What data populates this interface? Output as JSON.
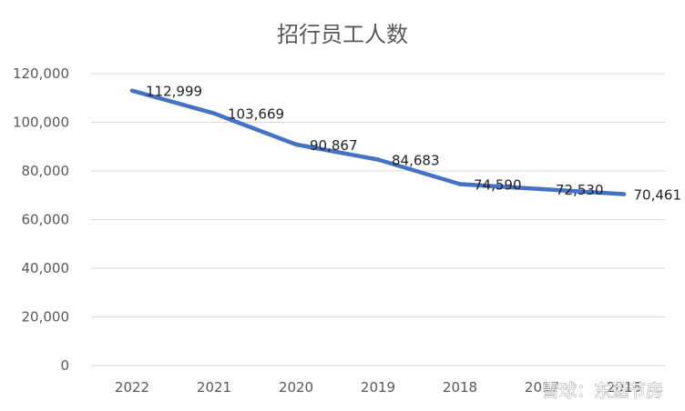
{
  "chart_data": {
    "type": "line",
    "title": "招行员工人数",
    "categories": [
      "2022",
      "2021",
      "2020",
      "2019",
      "2018",
      "2017",
      "2016"
    ],
    "series": [
      {
        "values": [
          112999,
          103669,
          90867,
          84683,
          74590,
          72530,
          70461
        ]
      }
    ],
    "data_labels": [
      "112,999",
      "103,669",
      "90,867",
      "84,683",
      "74,590",
      "72,530",
      "70,461"
    ],
    "y_ticks": [
      "0",
      "20,000",
      "40,000",
      "60,000",
      "80,000",
      "100,000",
      "120,000"
    ],
    "ylim": [
      0,
      120000
    ],
    "grid": true,
    "legend": "none",
    "xlabel": "",
    "ylabel": ""
  },
  "colors": {
    "line": "#4472C4",
    "grid": "#D9D9D9",
    "text": "#595959"
  },
  "watermark": {
    "text": "雪球：东逛节房"
  }
}
